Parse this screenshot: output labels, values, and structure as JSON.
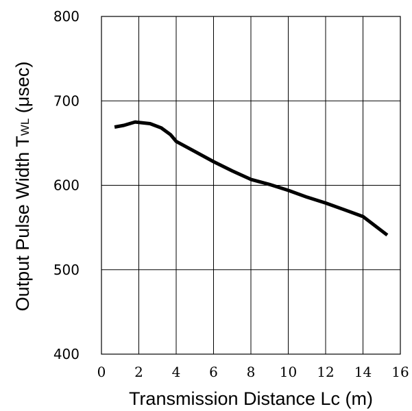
{
  "chart_data": {
    "type": "line",
    "xlabel": "Transmission Distance Lc (m)",
    "ylabel": {
      "main": "Output Pulse Width T",
      "subscript": "WL",
      "unit": " (μsec)"
    },
    "xlim": [
      0,
      16
    ],
    "ylim": [
      400,
      800
    ],
    "x_ticks": [
      "0",
      "2",
      "4",
      "6",
      "8",
      "10",
      "12",
      "14",
      "16"
    ],
    "y_ticks": [
      "400",
      "500",
      "600",
      "700",
      "800"
    ],
    "grid": true,
    "series": [
      {
        "color": "#000000",
        "points": [
          [
            0.7,
            669
          ],
          [
            1.2,
            671
          ],
          [
            1.8,
            675
          ],
          [
            2.6,
            673
          ],
          [
            3.2,
            668
          ],
          [
            3.7,
            660
          ],
          [
            4.0,
            652
          ],
          [
            5.0,
            640
          ],
          [
            6.0,
            628
          ],
          [
            7.0,
            617
          ],
          [
            8.0,
            607
          ],
          [
            9.0,
            601
          ],
          [
            10.0,
            594
          ],
          [
            11.0,
            586
          ],
          [
            12.0,
            579
          ],
          [
            13.0,
            571
          ],
          [
            14.0,
            563
          ],
          [
            15.3,
            541
          ]
        ]
      }
    ]
  }
}
